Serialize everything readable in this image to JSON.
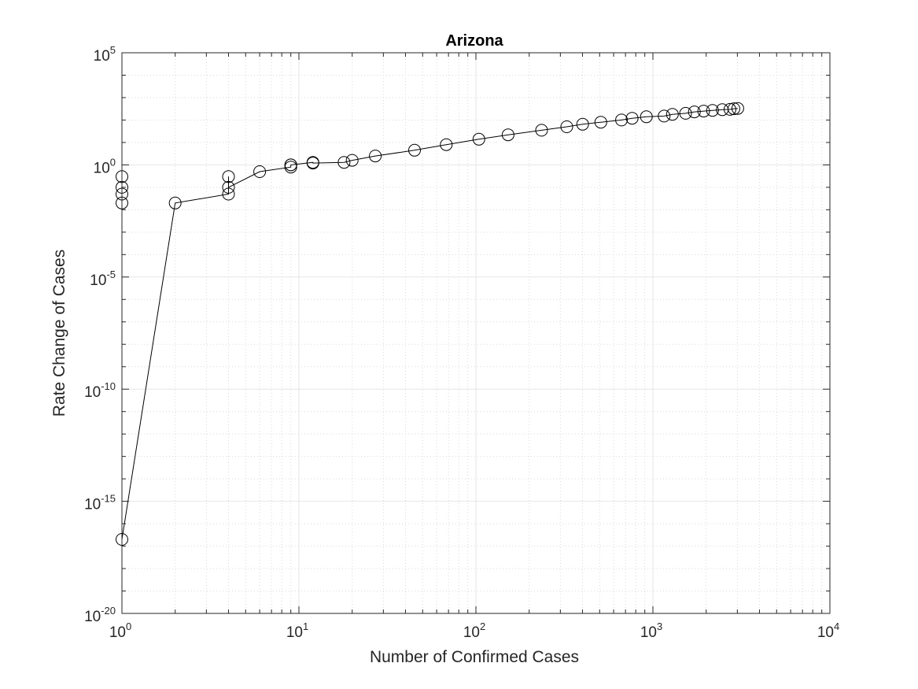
{
  "chart_data": {
    "type": "scatter",
    "title": "Arizona",
    "xlabel": "Number of Confirmed Cases",
    "ylabel": "Rate Change of Cases",
    "x_scale": "log",
    "y_scale": "log",
    "xlim": [
      1,
      10000
    ],
    "ylim": [
      1e-20,
      100000
    ],
    "x_ticks": [
      {
        "base": "10",
        "exp": "0",
        "value": 1
      },
      {
        "base": "10",
        "exp": "1",
        "value": 10
      },
      {
        "base": "10",
        "exp": "2",
        "value": 100
      },
      {
        "base": "10",
        "exp": "3",
        "value": 1000
      },
      {
        "base": "10",
        "exp": "4",
        "value": 10000
      }
    ],
    "y_ticks": [
      {
        "base": "10",
        "exp": "-20",
        "value": 1e-20
      },
      {
        "base": "10",
        "exp": "-15",
        "value": 1e-15
      },
      {
        "base": "10",
        "exp": "-10",
        "value": 1e-10
      },
      {
        "base": "10",
        "exp": "-5",
        "value": 1e-05
      },
      {
        "base": "10",
        "exp": "0",
        "value": 1
      },
      {
        "base": "10",
        "exp": "5",
        "value": 100000
      }
    ],
    "grid": true,
    "minor_grid": true,
    "marker": "circle",
    "line_color": "#000000",
    "series": [
      {
        "points": [
          [
            1,
            0.3
          ],
          [
            1,
            0.1
          ],
          [
            1,
            0.05
          ],
          [
            1,
            0.02
          ],
          [
            1,
            2e-17
          ],
          [
            2,
            0.02
          ],
          [
            4,
            0.05
          ],
          [
            4,
            0.3
          ],
          [
            4,
            0.1
          ],
          [
            6,
            0.5
          ],
          [
            9,
            0.8
          ],
          [
            9,
            1.0
          ],
          [
            9,
            1.0
          ],
          [
            12,
            1.3
          ],
          [
            12,
            1.2
          ],
          [
            18,
            1.3
          ],
          [
            20,
            1.6
          ],
          [
            27,
            2.5
          ],
          [
            45,
            4.5
          ],
          [
            68,
            8
          ],
          [
            104,
            14
          ],
          [
            152,
            22
          ],
          [
            235,
            35
          ],
          [
            326,
            50
          ],
          [
            401,
            65
          ],
          [
            508,
            80
          ],
          [
            665,
            100
          ],
          [
            763,
            120
          ],
          [
            919,
            140
          ],
          [
            1157,
            150
          ],
          [
            1289,
            180
          ],
          [
            1530,
            200
          ],
          [
            1715,
            230
          ],
          [
            1937,
            250
          ],
          [
            2173,
            270
          ],
          [
            2465,
            290
          ],
          [
            2726,
            300
          ],
          [
            2870,
            320
          ],
          [
            3018,
            330
          ]
        ]
      }
    ]
  }
}
